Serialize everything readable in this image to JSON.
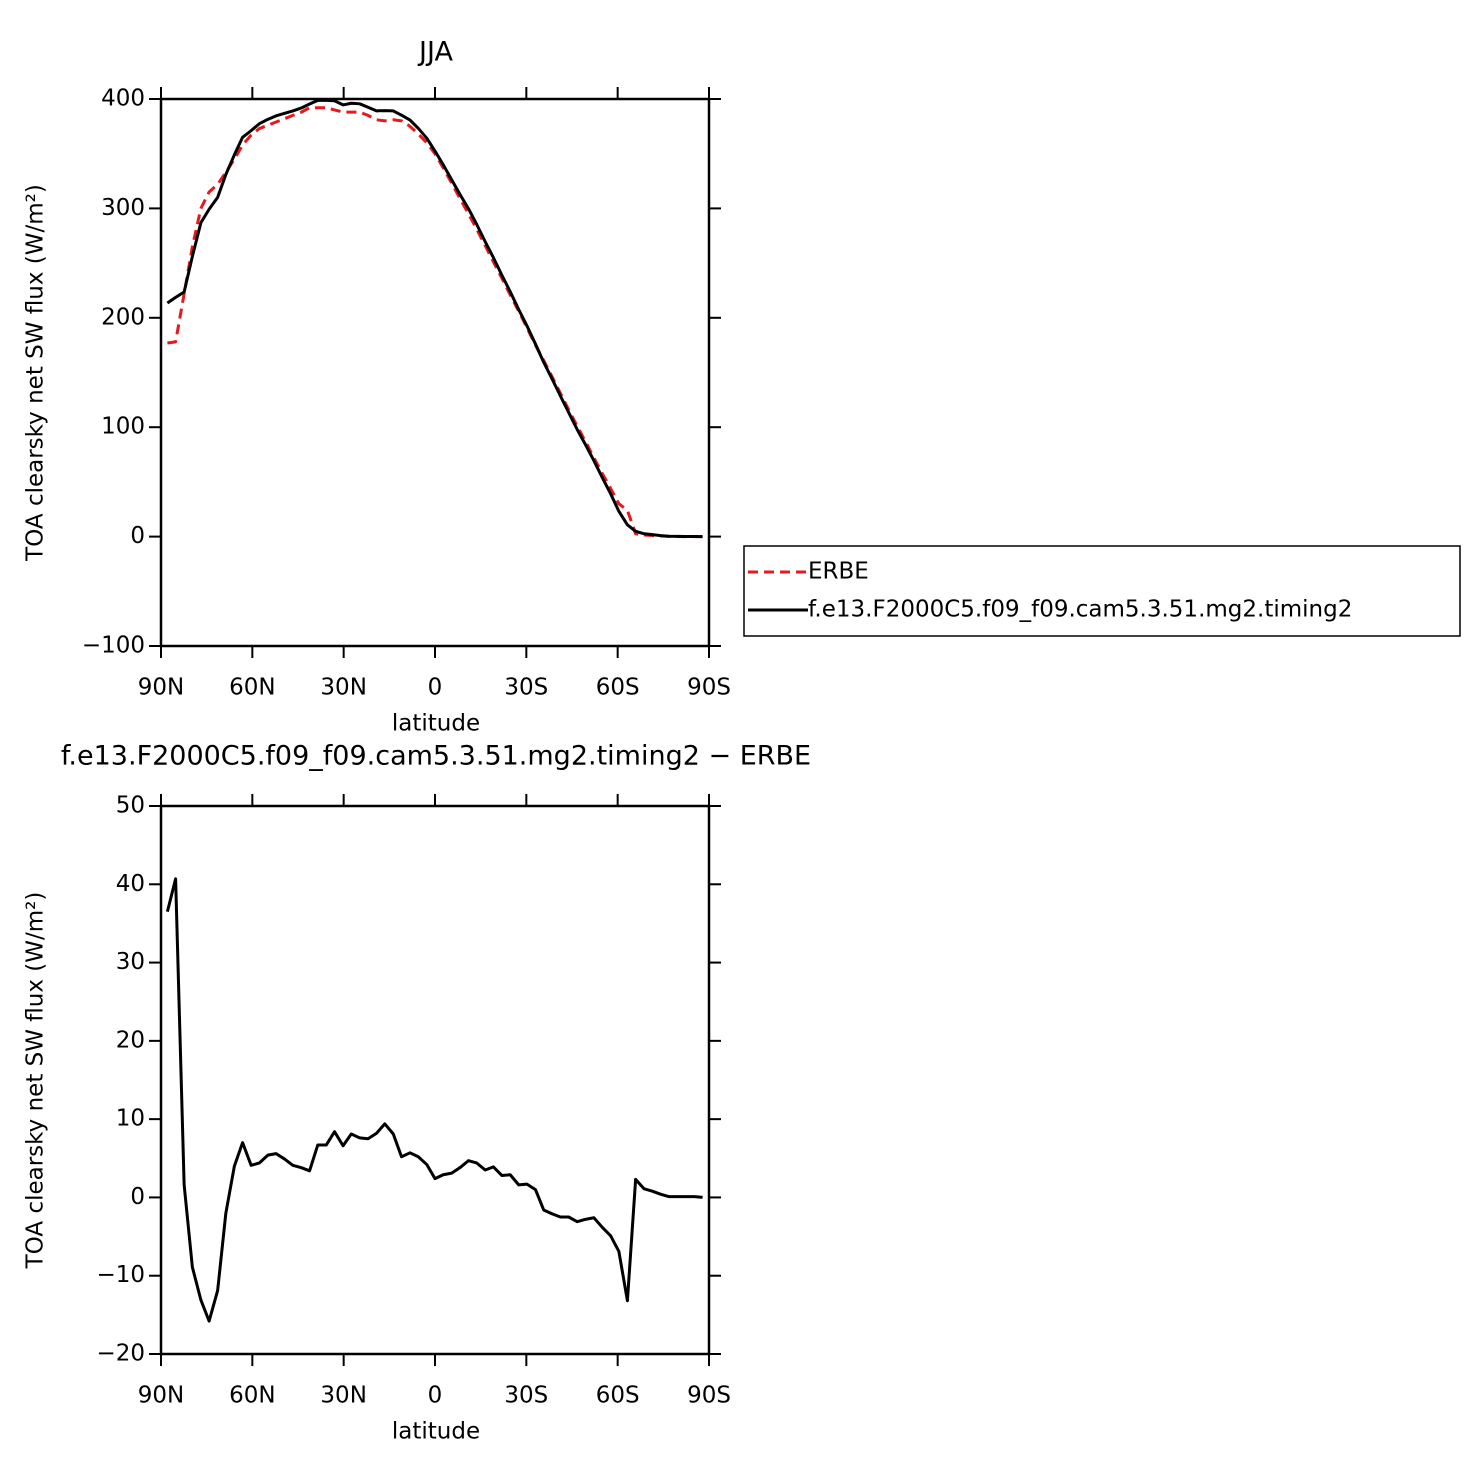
{
  "chart_data": [
    {
      "type": "line",
      "title": "JJA",
      "xlabel": "latitude",
      "ylabel": "TOA clearsky net SW flux (W/m²)",
      "xlim": [
        90,
        -90
      ],
      "ylim": [
        -100,
        400
      ],
      "xticks": [
        {
          "value": 90,
          "label": "90N"
        },
        {
          "value": 60,
          "label": "60N"
        },
        {
          "value": 30,
          "label": "30N"
        },
        0,
        {
          "value": -30,
          "label": "30S"
        },
        {
          "value": -60,
          "label": "60S"
        },
        {
          "value": -90,
          "label": "90S"
        }
      ],
      "yticks": [
        {
          "value": -100,
          "label": "−100"
        },
        0,
        100,
        200,
        300,
        400
      ],
      "legend": "outside-right",
      "x": [
        87.9,
        85.2,
        82.4,
        79.7,
        76.9,
        74.2,
        71.4,
        68.7,
        65.9,
        63.2,
        60.4,
        57.7,
        54.9,
        52.2,
        49.4,
        46.7,
        43.9,
        41.2,
        38.5,
        35.7,
        33.0,
        30.2,
        27.5,
        24.7,
        22.0,
        19.2,
        16.5,
        13.7,
        11.0,
        8.2,
        5.5,
        2.7,
        0.0,
        -2.7,
        -5.5,
        -8.2,
        -11.0,
        -13.7,
        -16.5,
        -19.2,
        -22.0,
        -24.7,
        -27.5,
        -30.2,
        -33.0,
        -35.7,
        -38.5,
        -41.2,
        -43.9,
        -46.7,
        -49.4,
        -52.2,
        -54.9,
        -57.7,
        -60.4,
        -63.2,
        -65.9,
        -68.7,
        -71.4,
        -74.2,
        -76.9,
        -79.7,
        -82.4,
        -85.2,
        -87.9
      ],
      "series": [
        {
          "name": "ERBE",
          "color": "#e8191c",
          "line_style": "dashed",
          "values": [
            177,
            178,
            222,
            265,
            300,
            315,
            322,
            333,
            345,
            358,
            367,
            373,
            376,
            379,
            382,
            385,
            388,
            392,
            392,
            392,
            390,
            388,
            388,
            388,
            385,
            381,
            380,
            381,
            380,
            375,
            368,
            360,
            350,
            337,
            323,
            309,
            295,
            281,
            266,
            251,
            236,
            221,
            206,
            191,
            175,
            161,
            146,
            131,
            116,
            101,
            87,
            72,
            58,
            44,
            30,
            24,
            2.5,
            1.5,
            1,
            0.5,
            0.2,
            0.1,
            0,
            0,
            0
          ]
        },
        {
          "name": "f.e13.F2000C5.f09_f09.cam5.3.51.mg2.timing2",
          "color": "#000000",
          "line_style": "solid",
          "values": [
            213.5,
            218.7,
            223.6,
            256.1,
            286.9,
            299.2,
            310.1,
            331,
            349,
            365,
            371.1,
            377.4,
            381.4,
            384.6,
            386.9,
            389.1,
            391.8,
            395.4,
            398.7,
            398.7,
            398.4,
            394.6,
            396.1,
            395.6,
            392.5,
            389.2,
            389.4,
            389.1,
            385.2,
            380.7,
            373.2,
            364.2,
            352.4,
            339.9,
            326.1,
            312.8,
            299.7,
            285.4,
            269.5,
            254.9,
            238.8,
            223.9,
            207.6,
            192.7,
            176,
            159.4,
            143.9,
            128.5,
            113.5,
            97.9,
            84.2,
            69.4,
            54.2,
            39.1,
            23.1,
            10.8,
            4.8,
            2.6,
            1.8,
            0.9,
            0.3,
            0.2,
            0.1,
            0.1,
            0
          ]
        }
      ]
    },
    {
      "type": "line",
      "title": "f.e13.F2000C5.f09_f09.cam5.3.51.mg2.timing2 − ERBE",
      "xlabel": "latitude",
      "ylabel": "TOA clearsky net SW flux (W/m²)",
      "xlim": [
        90,
        -90
      ],
      "ylim": [
        -20,
        50
      ],
      "xticks": [
        {
          "value": 90,
          "label": "90N"
        },
        {
          "value": 60,
          "label": "60N"
        },
        {
          "value": 30,
          "label": "30N"
        },
        0,
        {
          "value": -30,
          "label": "30S"
        },
        {
          "value": -60,
          "label": "60S"
        },
        {
          "value": -90,
          "label": "90S"
        }
      ],
      "yticks": [
        {
          "value": -20,
          "label": "−20"
        },
        {
          "value": -10,
          "label": "−10"
        },
        0,
        10,
        20,
        30,
        40,
        50
      ],
      "x": [
        87.9,
        85.2,
        82.4,
        79.7,
        76.9,
        74.2,
        71.4,
        68.7,
        65.9,
        63.2,
        60.4,
        57.7,
        54.9,
        52.2,
        49.4,
        46.7,
        43.9,
        41.2,
        38.5,
        35.7,
        33.0,
        30.2,
        27.5,
        24.7,
        22.0,
        19.2,
        16.5,
        13.7,
        11.0,
        8.2,
        5.5,
        2.7,
        0.0,
        -2.7,
        -5.5,
        -8.2,
        -11.0,
        -13.7,
        -16.5,
        -19.2,
        -22.0,
        -24.7,
        -27.5,
        -30.2,
        -33.0,
        -35.7,
        -38.5,
        -41.2,
        -43.9,
        -46.7,
        -49.4,
        -52.2,
        -54.9,
        -57.7,
        -60.4,
        -63.2,
        -65.9,
        -68.7,
        -71.4,
        -74.2,
        -76.9,
        -79.7,
        -82.4,
        -85.2,
        -87.9
      ],
      "series": [
        {
          "color": "#000000",
          "line_style": "solid",
          "values": [
            36.5,
            40.7,
            1.6,
            -8.9,
            -13.1,
            -15.8,
            -11.9,
            -2.0,
            4.0,
            7.0,
            4.1,
            4.4,
            5.4,
            5.6,
            4.9,
            4.1,
            3.8,
            3.4,
            6.7,
            6.7,
            8.4,
            6.6,
            8.1,
            7.6,
            7.5,
            8.2,
            9.4,
            8.1,
            5.2,
            5.7,
            5.2,
            4.2,
            2.4,
            2.9,
            3.1,
            3.8,
            4.7,
            4.4,
            3.5,
            3.9,
            2.8,
            2.9,
            1.6,
            1.7,
            1.0,
            -1.6,
            -2.1,
            -2.5,
            -2.5,
            -3.1,
            -2.8,
            -2.6,
            -3.8,
            -4.9,
            -6.9,
            -13.2,
            2.3,
            1.1,
            0.8,
            0.4,
            0.1,
            0.1,
            0.1,
            0.1,
            0.0
          ]
        }
      ]
    }
  ]
}
